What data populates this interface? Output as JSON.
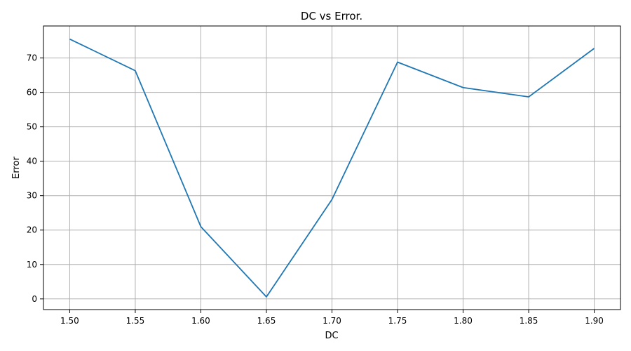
{
  "chart_data": {
    "type": "line",
    "title": "DC vs Error.",
    "xlabel": "DC",
    "ylabel": "Error",
    "x": [
      1.5,
      1.55,
      1.6,
      1.65,
      1.7,
      1.75,
      1.8,
      1.85,
      1.9
    ],
    "series": [
      {
        "values": [
          75.5,
          66.3,
          21.0,
          0.6,
          28.9,
          68.8,
          61.4,
          58.7,
          72.8
        ]
      }
    ],
    "xticks": [
      1.5,
      1.55,
      1.6,
      1.65,
      1.7,
      1.75,
      1.8,
      1.85,
      1.9
    ],
    "xtick_labels": [
      "1.50",
      "1.55",
      "1.60",
      "1.65",
      "1.70",
      "1.75",
      "1.80",
      "1.85",
      "1.90"
    ],
    "yticks": [
      0,
      10,
      20,
      30,
      40,
      50,
      60,
      70
    ],
    "ytick_labels": [
      "0",
      "10",
      "20",
      "30",
      "40",
      "50",
      "60",
      "70"
    ],
    "xlim": [
      1.48,
      1.92
    ],
    "ylim": [
      -3.1,
      79.3
    ],
    "grid": true,
    "legend": "none",
    "colors": {
      "series": "#1f77b4"
    }
  }
}
